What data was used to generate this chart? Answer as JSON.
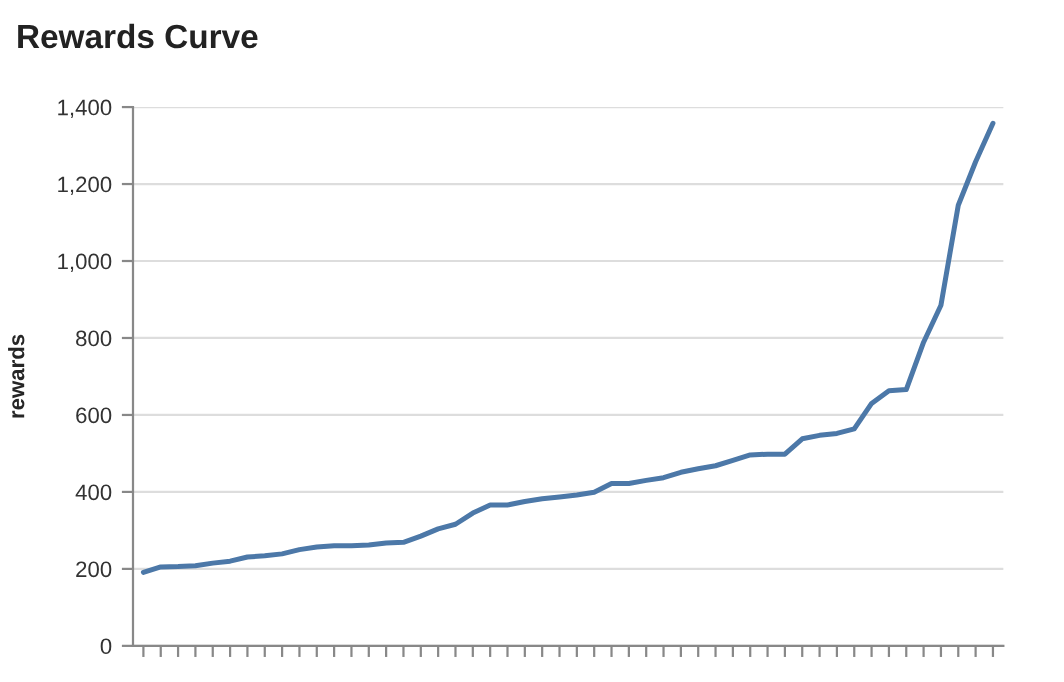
{
  "chart_data": {
    "type": "line",
    "title": "Rewards Curve",
    "ylabel": "rewards",
    "categories": [
      null,
      null,
      null,
      null,
      null,
      null,
      null,
      null,
      null,
      null,
      null,
      null,
      null,
      null,
      null,
      null,
      null,
      null,
      null,
      null,
      null,
      null,
      null,
      null,
      null,
      null,
      null,
      null,
      null,
      null,
      null,
      null,
      null,
      null,
      null,
      null,
      null,
      null,
      null,
      null,
      null,
      null,
      null,
      null,
      null,
      null,
      null,
      null,
      null,
      null
    ],
    "series": [
      {
        "color": "#4c78a8",
        "values": [
          191,
          205,
          206,
          208,
          215,
          220,
          231,
          234,
          239,
          250,
          257,
          260,
          260,
          262,
          267,
          269,
          285,
          304,
          316,
          345,
          366,
          366,
          375,
          382,
          387,
          392,
          399,
          422,
          422,
          430,
          437,
          451,
          460,
          468,
          482,
          496,
          498,
          498,
          538,
          547,
          552,
          564,
          630,
          663,
          666,
          789,
          885,
          1145,
          1258,
          1358
        ]
      }
    ],
    "ylim": [
      0,
      1400
    ],
    "yticks": [
      0,
      {
        "value": 200,
        "label": "200"
      },
      {
        "value": 400,
        "label": "400"
      },
      {
        "value": 600,
        "label": "600"
      },
      {
        "value": 800,
        "label": "800"
      },
      {
        "value": 1000,
        "label": "1,000"
      },
      {
        "value": 1200,
        "label": "1,200"
      },
      {
        "value": 1400,
        "label": "1,400"
      }
    ],
    "grid": "y",
    "tick_labels": "y",
    "marker": "none",
    "line_style": "solid"
  }
}
